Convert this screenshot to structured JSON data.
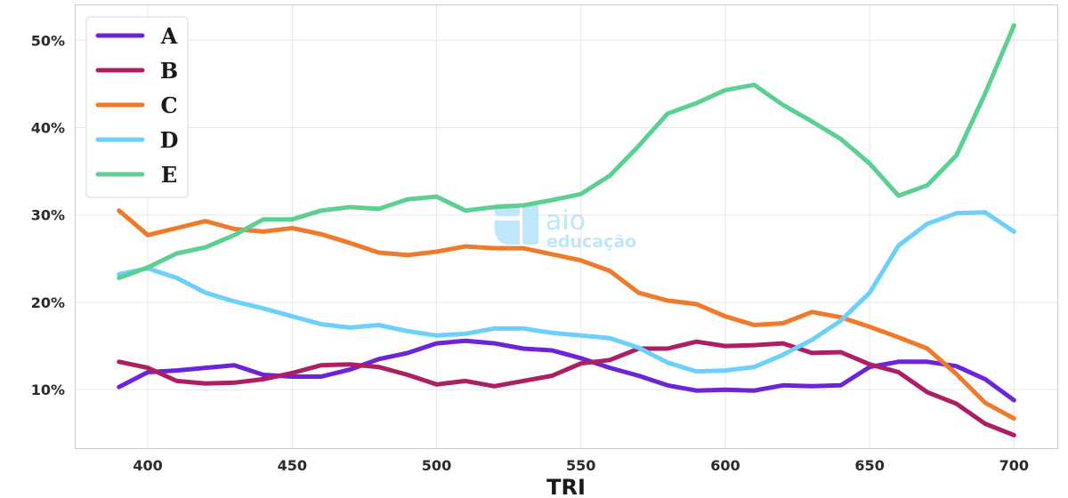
{
  "watermark": {
    "name": "aio",
    "subtitle": "educação"
  },
  "chart_data": {
    "type": "line",
    "title": "",
    "xlabel": "TRI",
    "ylabel": "",
    "xlim": [
      375,
      715
    ],
    "ylim": [
      3.3,
      54
    ],
    "xticks": [
      400,
      450,
      500,
      550,
      600,
      650,
      700
    ],
    "yticks": [
      10,
      20,
      30,
      40,
      50
    ],
    "ytick_format": "percent",
    "grid": true,
    "legend_position": "top-left",
    "x": [
      390,
      400,
      410,
      420,
      430,
      440,
      450,
      460,
      470,
      480,
      490,
      500,
      510,
      520,
      530,
      540,
      550,
      560,
      570,
      580,
      590,
      600,
      610,
      620,
      630,
      640,
      650,
      660,
      670,
      680,
      690,
      700
    ],
    "series": [
      {
        "name": "A",
        "color": "#6d23d8",
        "values": [
          10.3,
          12.0,
          12.2,
          12.5,
          12.8,
          11.7,
          11.5,
          11.5,
          12.3,
          13.5,
          14.2,
          15.3,
          15.6,
          15.3,
          14.7,
          14.5,
          13.6,
          12.5,
          11.6,
          10.5,
          9.9,
          10.0,
          9.9,
          10.5,
          10.4,
          10.5,
          12.6,
          13.2,
          13.2,
          12.7,
          11.2,
          8.8
        ]
      },
      {
        "name": "B",
        "color": "#ad1f63",
        "values": [
          13.2,
          12.5,
          11.0,
          10.7,
          10.8,
          11.2,
          11.9,
          12.8,
          12.9,
          12.6,
          11.7,
          10.6,
          11.0,
          10.4,
          11.0,
          11.6,
          13.0,
          13.4,
          14.7,
          14.7,
          15.5,
          15.0,
          15.1,
          15.3,
          14.2,
          14.3,
          12.9,
          12.0,
          9.7,
          8.4,
          6.1,
          4.8
        ]
      },
      {
        "name": "C",
        "color": "#f07a2c",
        "values": [
          30.5,
          27.7,
          28.5,
          29.3,
          28.4,
          28.1,
          28.5,
          27.8,
          26.8,
          25.7,
          25.4,
          25.8,
          26.4,
          26.2,
          26.2,
          25.5,
          24.8,
          23.6,
          21.1,
          20.2,
          19.8,
          18.4,
          17.4,
          17.6,
          18.9,
          18.3,
          17.2,
          16.0,
          14.7,
          11.8,
          8.5,
          6.7
        ]
      },
      {
        "name": "D",
        "color": "#6bd0fb",
        "values": [
          23.2,
          23.9,
          22.8,
          21.1,
          20.1,
          19.3,
          18.4,
          17.5,
          17.1,
          17.4,
          16.7,
          16.2,
          16.4,
          17.0,
          17.0,
          16.5,
          16.2,
          15.9,
          14.8,
          13.1,
          12.1,
          12.2,
          12.6,
          14.0,
          15.7,
          17.9,
          21.1,
          26.5,
          29.0,
          30.2,
          30.3,
          28.1
        ]
      },
      {
        "name": "E",
        "color": "#5ccf93",
        "values": [
          22.8,
          24.0,
          25.6,
          26.3,
          27.7,
          29.5,
          29.5,
          30.5,
          30.9,
          30.7,
          31.8,
          32.1,
          30.5,
          30.9,
          31.1,
          31.7,
          32.4,
          34.5,
          37.9,
          41.6,
          42.8,
          44.3,
          44.9,
          42.6,
          40.7,
          38.7,
          35.9,
          32.2,
          33.4,
          36.8,
          43.9,
          51.7
        ]
      }
    ]
  }
}
